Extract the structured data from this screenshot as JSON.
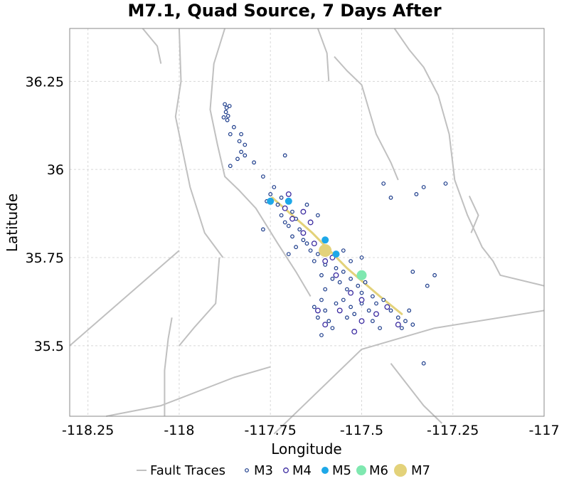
{
  "chart_data": {
    "type": "scatter",
    "title": "M7.1, Quad Source, 7 Days After",
    "xlabel": "Longitude",
    "ylabel": "Latitude",
    "xlim": [
      -118.3,
      -117.0
    ],
    "ylim": [
      35.3,
      36.4
    ],
    "grid": true,
    "legend_position": "bottom",
    "x_ticks": [
      {
        "value": -118.25,
        "label": "-118.25"
      },
      {
        "value": -118.0,
        "label": "-118"
      },
      {
        "value": -117.75,
        "label": "-117.75"
      },
      {
        "value": -117.5,
        "label": "-117.5"
      },
      {
        "value": -117.25,
        "label": "-117.25"
      },
      {
        "value": -117.0,
        "label": "-117"
      }
    ],
    "y_ticks": [
      {
        "value": 35.5,
        "label": "35.5"
      },
      {
        "value": 35.75,
        "label": "35.75"
      },
      {
        "value": 36.0,
        "label": "36"
      },
      {
        "value": 36.25,
        "label": "36.25"
      }
    ],
    "colors": {
      "fault": "#c0c0c0",
      "m3": "#1a3a8a",
      "m4": "#3a2aa0",
      "m5": "#1ea8e8",
      "m6": "#7fe8b0",
      "m7": "#e3d27a",
      "rupture": "#e3d27a",
      "grid": "#d8d8d8"
    },
    "faults": [
      [
        [
          -117.875,
          36.4
        ],
        [
          -117.905,
          36.3
        ],
        [
          -117.915,
          36.17
        ],
        [
          -117.895,
          36.07
        ],
        [
          -117.875,
          35.98
        ],
        [
          -117.835,
          35.94
        ],
        [
          -117.79,
          35.89
        ],
        [
          -117.73,
          35.79
        ],
        [
          -117.68,
          35.71
        ],
        [
          -117.64,
          35.64
        ]
      ],
      [
        [
          -118.1,
          36.4
        ],
        [
          -118.06,
          36.35
        ],
        [
          -118.05,
          36.3
        ]
      ],
      [
        [
          -117.62,
          36.4
        ],
        [
          -117.595,
          36.33
        ],
        [
          -117.59,
          36.25
        ]
      ],
      [
        [
          -117.41,
          36.4
        ],
        [
          -117.37,
          36.34
        ],
        [
          -117.33,
          36.29
        ],
        [
          -117.29,
          36.21
        ],
        [
          -117.26,
          36.1
        ],
        [
          -117.245,
          35.97
        ],
        [
          -117.21,
          35.87
        ],
        [
          -117.17,
          35.78
        ],
        [
          -117.14,
          35.74
        ],
        [
          -117.12,
          35.7
        ],
        [
          -117.0,
          35.67
        ]
      ],
      [
        [
          -117.74,
          35.25
        ],
        [
          -117.5,
          35.49
        ],
        [
          -117.3,
          35.55
        ],
        [
          -117.0,
          35.6
        ]
      ],
      [
        [
          -118.2,
          35.3
        ],
        [
          -118.05,
          35.33
        ],
        [
          -117.85,
          35.41
        ],
        [
          -117.75,
          35.44
        ]
      ],
      [
        [
          -117.42,
          35.45
        ],
        [
          -117.33,
          35.33
        ],
        [
          -117.28,
          35.28
        ]
      ],
      [
        [
          -117.575,
          36.32
        ],
        [
          -117.54,
          36.28
        ],
        [
          -117.5,
          36.24
        ],
        [
          -117.48,
          36.17
        ],
        [
          -117.46,
          36.1
        ],
        [
          -117.42,
          36.02
        ],
        [
          -117.4,
          35.97
        ]
      ],
      [
        [
          -117.205,
          35.925
        ],
        [
          -117.18,
          35.87
        ],
        [
          -117.2,
          35.82
        ]
      ],
      [
        [
          -118.0,
          35.77
        ],
        [
          -118.3,
          35.5
        ]
      ],
      [
        [
          -118.02,
          35.58
        ],
        [
          -118.03,
          35.52
        ],
        [
          -118.04,
          35.43
        ],
        [
          -118.04,
          35.3
        ]
      ],
      [
        [
          -117.89,
          35.75
        ],
        [
          -117.9,
          35.62
        ],
        [
          -117.96,
          35.55
        ],
        [
          -118.0,
          35.5
        ]
      ],
      [
        [
          -118.0,
          36.4
        ],
        [
          -117.995,
          36.25
        ],
        [
          -118.01,
          36.15
        ],
        [
          -117.99,
          36.05
        ],
        [
          -117.97,
          35.95
        ],
        [
          -117.93,
          35.82
        ],
        [
          -117.88,
          35.75
        ]
      ]
    ],
    "rupture": [
      [
        -117.745,
        35.92
      ],
      [
        -117.635,
        35.82
      ],
      [
        -117.54,
        35.72
      ],
      [
        -117.45,
        35.64
      ],
      [
        -117.39,
        35.59
      ]
    ],
    "events": {
      "m3": [
        [
          -117.875,
          36.185
        ],
        [
          -117.87,
          36.175
        ],
        [
          -117.872,
          36.163
        ],
        [
          -117.866,
          36.152
        ],
        [
          -117.878,
          36.148
        ],
        [
          -117.862,
          36.18
        ],
        [
          -117.868,
          36.14
        ],
        [
          -117.85,
          36.12
        ],
        [
          -117.83,
          36.1
        ],
        [
          -117.86,
          36.1
        ],
        [
          -117.835,
          36.08
        ],
        [
          -117.82,
          36.07
        ],
        [
          -117.83,
          36.05
        ],
        [
          -117.84,
          36.03
        ],
        [
          -117.86,
          36.01
        ],
        [
          -117.82,
          36.04
        ],
        [
          -117.795,
          36.02
        ],
        [
          -117.71,
          36.04
        ],
        [
          -117.77,
          35.98
        ],
        [
          -117.75,
          35.93
        ],
        [
          -117.72,
          35.92
        ],
        [
          -117.73,
          35.9
        ],
        [
          -117.7,
          35.91
        ],
        [
          -117.69,
          35.88
        ],
        [
          -117.72,
          35.87
        ],
        [
          -117.68,
          35.86
        ],
        [
          -117.71,
          35.85
        ],
        [
          -117.7,
          35.84
        ],
        [
          -117.67,
          35.83
        ],
        [
          -117.69,
          35.81
        ],
        [
          -117.66,
          35.8
        ],
        [
          -117.65,
          35.79
        ],
        [
          -117.68,
          35.78
        ],
        [
          -117.64,
          35.77
        ],
        [
          -117.62,
          35.76
        ],
        [
          -117.63,
          35.74
        ],
        [
          -117.6,
          35.73
        ],
        [
          -117.61,
          35.7
        ],
        [
          -117.57,
          35.72
        ],
        [
          -117.58,
          35.69
        ],
        [
          -117.55,
          35.71
        ],
        [
          -117.56,
          35.68
        ],
        [
          -117.53,
          35.69
        ],
        [
          -117.54,
          35.66
        ],
        [
          -117.51,
          35.67
        ],
        [
          -117.5,
          35.65
        ],
        [
          -117.49,
          35.68
        ],
        [
          -117.47,
          35.64
        ],
        [
          -117.46,
          35.62
        ],
        [
          -117.44,
          35.63
        ],
        [
          -117.42,
          35.6
        ],
        [
          -117.4,
          35.58
        ],
        [
          -117.38,
          35.57
        ],
        [
          -117.39,
          35.55
        ],
        [
          -117.36,
          35.56
        ],
        [
          -117.37,
          35.6
        ],
        [
          -117.6,
          35.66
        ],
        [
          -117.61,
          35.63
        ],
        [
          -117.6,
          35.6
        ],
        [
          -117.62,
          35.58
        ],
        [
          -117.59,
          35.57
        ],
        [
          -117.58,
          35.55
        ],
        [
          -117.61,
          35.53
        ],
        [
          -117.63,
          35.61
        ],
        [
          -117.57,
          35.62
        ],
        [
          -117.55,
          35.63
        ],
        [
          -117.53,
          35.61
        ],
        [
          -117.52,
          35.59
        ],
        [
          -117.54,
          35.58
        ],
        [
          -117.5,
          35.62
        ],
        [
          -117.48,
          35.6
        ],
        [
          -117.47,
          35.57
        ],
        [
          -117.45,
          35.55
        ],
        [
          -117.44,
          35.96
        ],
        [
          -117.42,
          35.92
        ],
        [
          -117.33,
          35.95
        ],
        [
          -117.27,
          35.96
        ],
        [
          -117.35,
          35.93
        ],
        [
          -117.36,
          35.71
        ],
        [
          -117.3,
          35.7
        ],
        [
          -117.32,
          35.67
        ],
        [
          -117.77,
          35.83
        ],
        [
          -117.7,
          35.76
        ],
        [
          -117.33,
          35.45
        ],
        [
          -117.5,
          35.75
        ],
        [
          -117.53,
          35.74
        ],
        [
          -117.55,
          35.77
        ],
        [
          -117.62,
          35.87
        ],
        [
          -117.65,
          35.9
        ],
        [
          -117.74,
          35.95
        ],
        [
          -117.76,
          35.91
        ]
      ],
      "m4": [
        [
          -117.71,
          35.89
        ],
        [
          -117.69,
          35.86
        ],
        [
          -117.66,
          35.82
        ],
        [
          -117.63,
          35.79
        ],
        [
          -117.6,
          35.74
        ],
        [
          -117.57,
          35.7
        ],
        [
          -117.53,
          35.65
        ],
        [
          -117.5,
          35.63
        ],
        [
          -117.46,
          35.59
        ],
        [
          -117.56,
          35.6
        ],
        [
          -117.62,
          35.6
        ],
        [
          -117.6,
          35.56
        ],
        [
          -117.5,
          35.57
        ],
        [
          -117.43,
          35.61
        ],
        [
          -117.4,
          35.56
        ],
        [
          -117.7,
          35.93
        ],
        [
          -117.66,
          35.88
        ],
        [
          -117.64,
          35.85
        ],
        [
          -117.58,
          35.75
        ],
        [
          -117.52,
          35.54
        ]
      ],
      "m5": [
        [
          -117.75,
          35.91
        ],
        [
          -117.7,
          35.91
        ],
        [
          -117.6,
          35.8
        ],
        [
          -117.57,
          35.76
        ]
      ],
      "m6": [
        [
          -117.5,
          35.7
        ]
      ],
      "m7": [
        [
          -117.6,
          35.77
        ]
      ]
    },
    "legend": [
      {
        "key": "fault",
        "label": "Fault Traces"
      },
      {
        "key": "m3",
        "label": "M3"
      },
      {
        "key": "m4",
        "label": "M4"
      },
      {
        "key": "m5",
        "label": "M5"
      },
      {
        "key": "m6",
        "label": "M6"
      },
      {
        "key": "m7",
        "label": "M7"
      }
    ]
  }
}
